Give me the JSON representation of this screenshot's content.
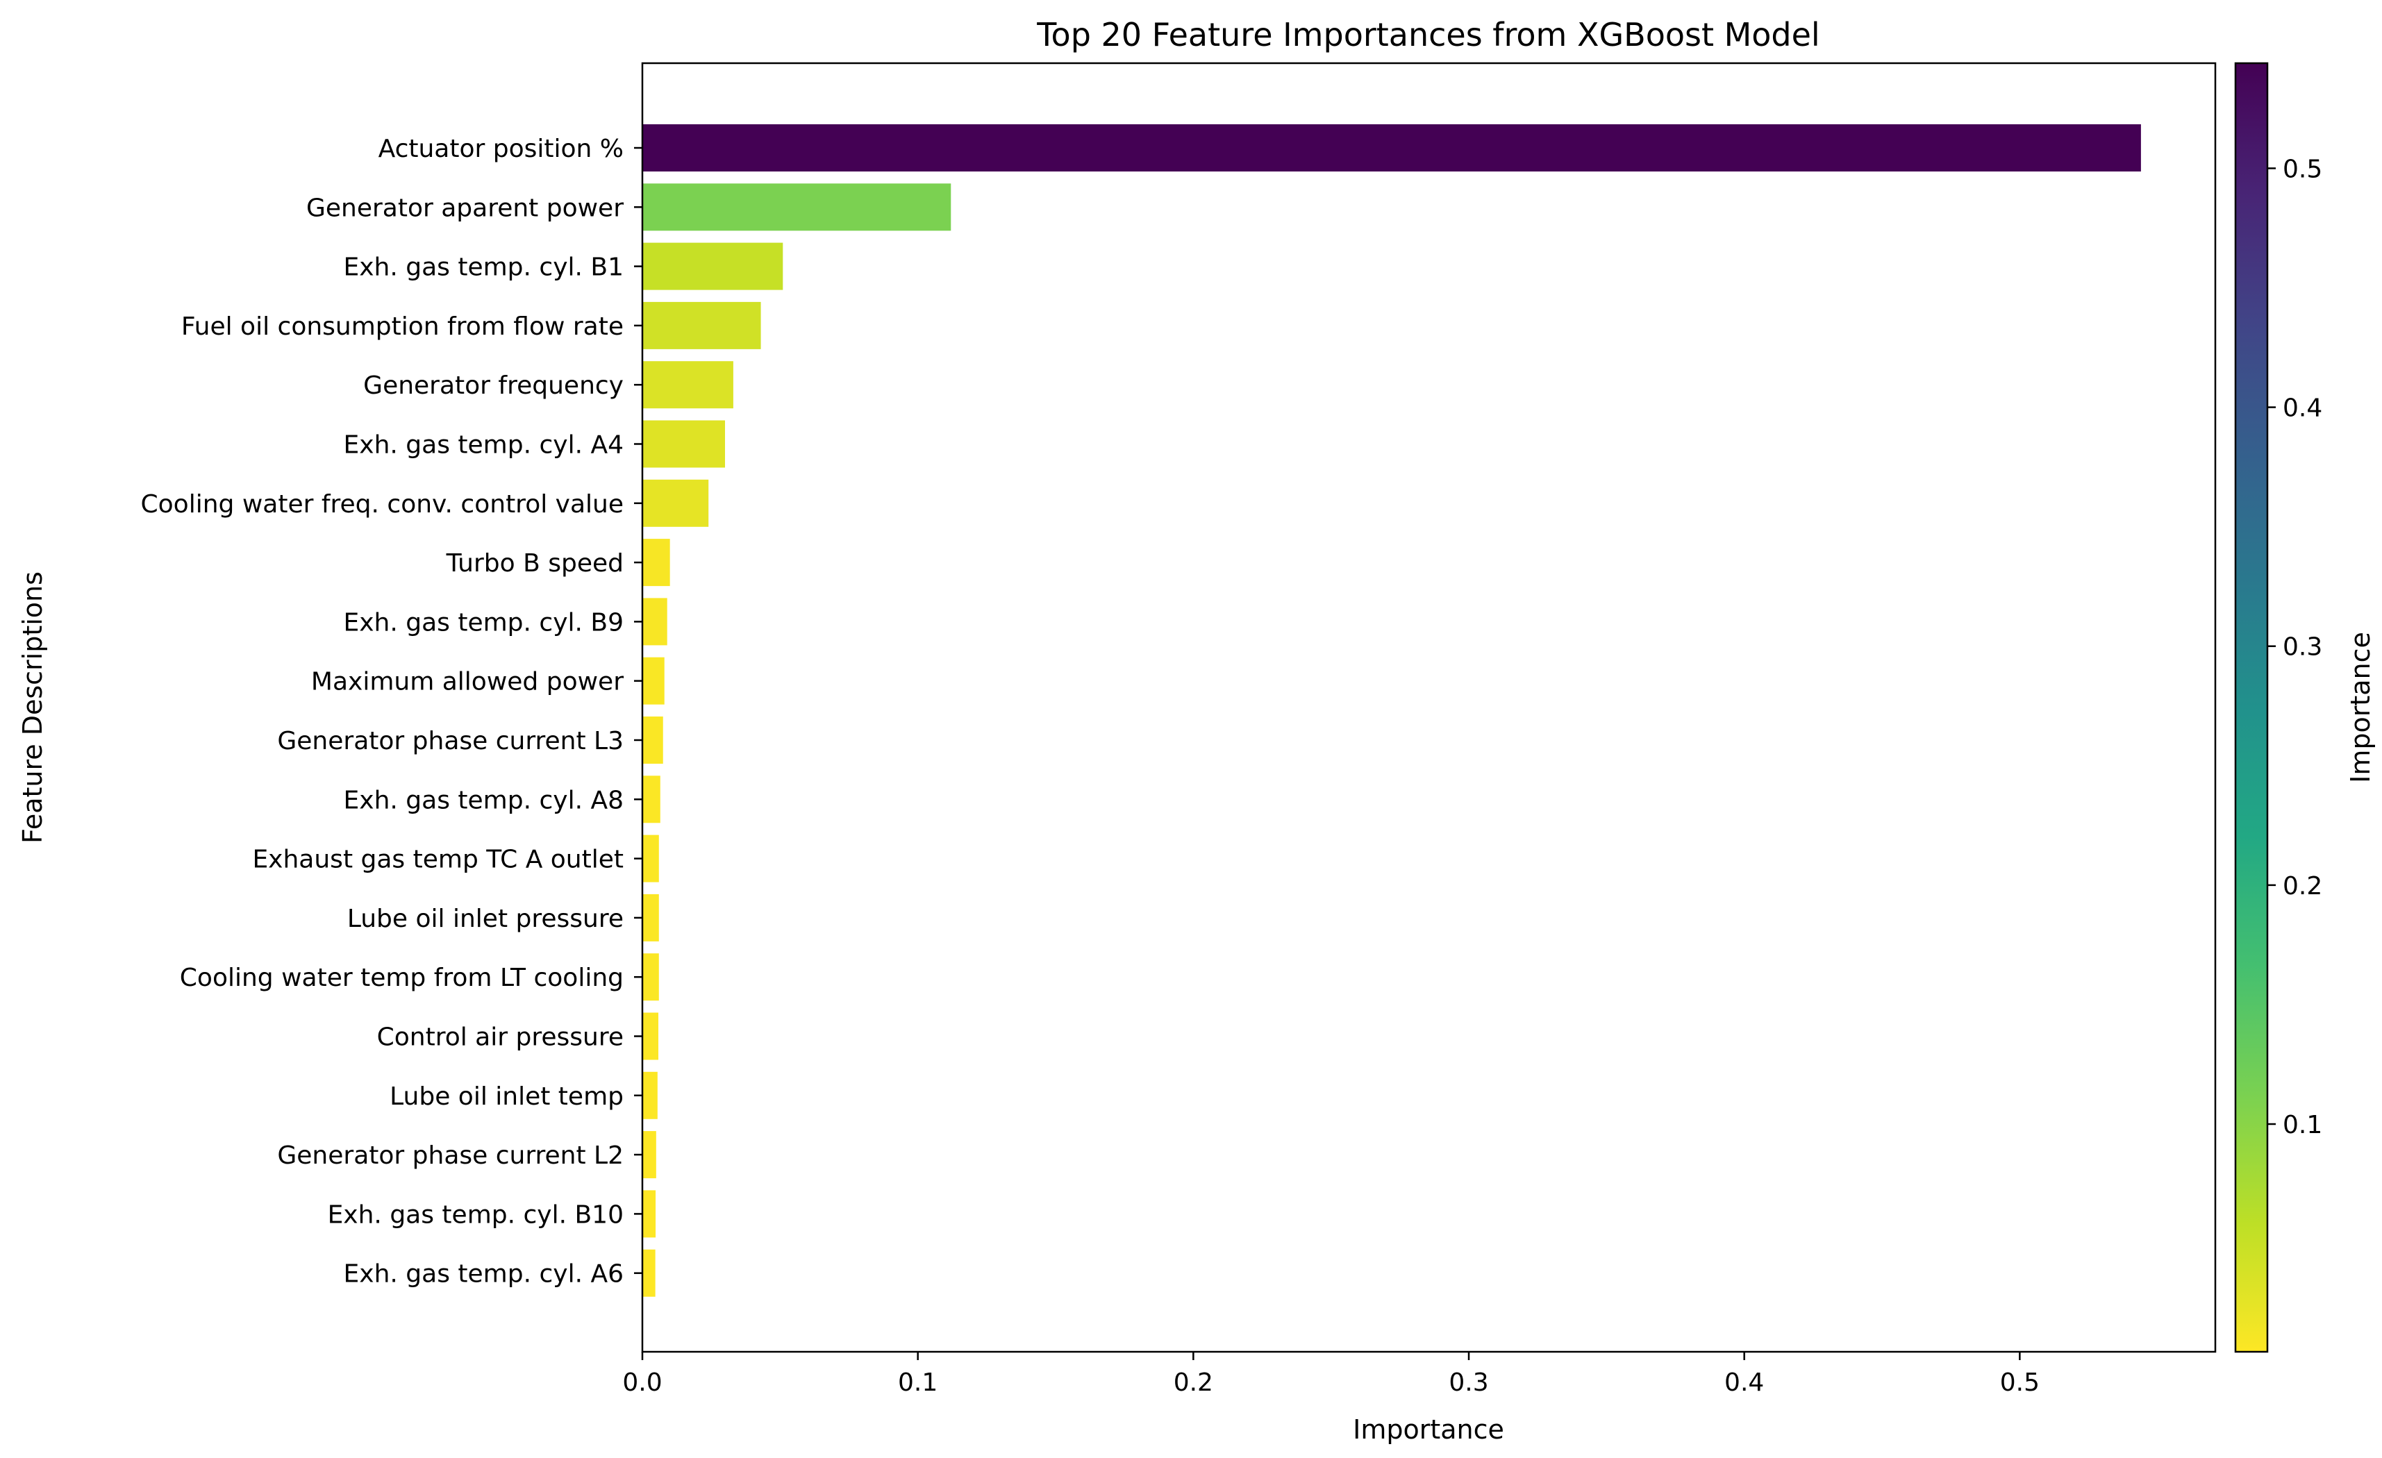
{
  "chart_data": {
    "type": "bar",
    "orientation": "horizontal",
    "title": "Top 20 Feature Importances from XGBoost Model",
    "xlabel": "Importance",
    "ylabel": "Feature Descriptions",
    "xlim": [
      0,
      0.571
    ],
    "xticks": [
      0.0,
      0.1,
      0.2,
      0.3,
      0.4,
      0.5
    ],
    "xtick_labels": [
      "0.0",
      "0.1",
      "0.2",
      "0.3",
      "0.4",
      "0.5"
    ],
    "grid": false,
    "colormap": "viridis_r",
    "categories": [
      "Actuator position %",
      "Generator aparent power",
      "Exh. gas temp. cyl. B1",
      "Fuel oil consumption from flow rate",
      "Generator frequency",
      "Exh. gas temp. cyl. A4",
      "Cooling water freq. conv. control value",
      "Turbo B speed",
      "Exh. gas temp. cyl. B9",
      "Maximum allowed power",
      "Generator phase current L3",
      "Exh. gas temp. cyl. A8",
      "Exhaust gas temp TC A outlet",
      "Lube oil inlet pressure",
      "Cooling water temp from LT cooling",
      "Control air pressure",
      "Lube oil inlet temp",
      "Generator phase current L2",
      "Exh. gas temp. cyl. B10",
      "Exh. gas temp. cyl. A6"
    ],
    "values": [
      0.544,
      0.112,
      0.051,
      0.043,
      0.033,
      0.03,
      0.024,
      0.01,
      0.009,
      0.008,
      0.0075,
      0.0065,
      0.006,
      0.006,
      0.006,
      0.0058,
      0.0055,
      0.005,
      0.0048,
      0.0047
    ],
    "colorbar": {
      "label": "Importance",
      "range": [
        0.0047,
        0.544
      ],
      "ticks": [
        0.1,
        0.2,
        0.3,
        0.4,
        0.5
      ],
      "tick_labels": [
        "0.1",
        "0.2",
        "0.3",
        "0.4",
        "0.5"
      ]
    }
  }
}
